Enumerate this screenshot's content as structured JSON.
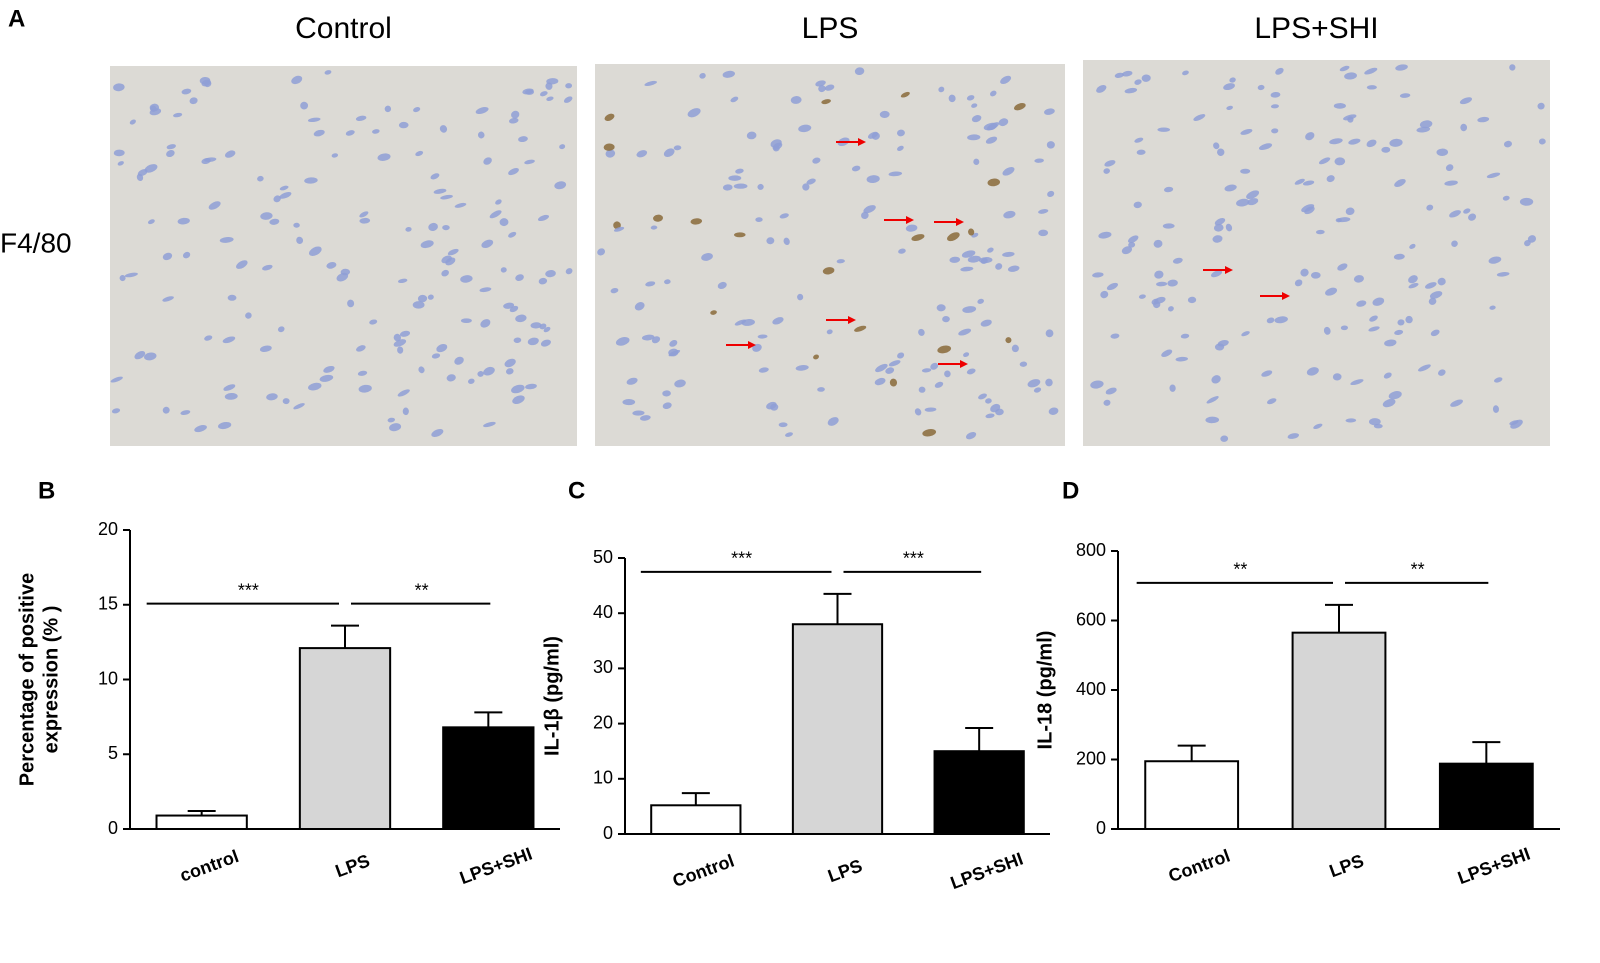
{
  "panel_a": {
    "label": "A",
    "columns": [
      "Control",
      "LPS",
      "LPS+SHI"
    ],
    "row_label": "F4/80"
  },
  "chart_data": [
    {
      "type": "bar",
      "panel": "B",
      "ylabel": [
        "Percentage of positive",
        "expression (% )"
      ],
      "categories": [
        "control",
        "LPS",
        "LPS+SHI"
      ],
      "values": [
        0.9,
        12.1,
        6.8
      ],
      "errors": [
        0.3,
        1.5,
        1.0
      ],
      "colors": [
        "#ffffff",
        "#d6d6d6",
        "#000000"
      ],
      "annotations": [
        "***",
        "**"
      ],
      "ylim": [
        0,
        20
      ],
      "yticks": [
        0,
        5,
        10,
        15,
        20
      ]
    },
    {
      "type": "bar",
      "panel": "C",
      "ylabel": [
        "IL-1β (pg/ml)"
      ],
      "categories": [
        "Control",
        "LPS",
        "LPS+SHI"
      ],
      "values": [
        5.2,
        38,
        15
      ],
      "errors": [
        2.2,
        5.5,
        4.2
      ],
      "colors": [
        "#ffffff",
        "#d6d6d6",
        "#000000"
      ],
      "annotations": [
        "***",
        "***"
      ],
      "ylim": [
        0,
        50
      ],
      "yticks": [
        0,
        10,
        20,
        30,
        40,
        50
      ]
    },
    {
      "type": "bar",
      "panel": "D",
      "ylabel": [
        "IL-18 (pg/ml)"
      ],
      "categories": [
        "Control",
        "LPS",
        "LPS+SHI"
      ],
      "values": [
        195,
        565,
        188
      ],
      "errors": [
        45,
        80,
        62
      ],
      "colors": [
        "#ffffff",
        "#d6d6d6",
        "#000000"
      ],
      "annotations": [
        "**",
        "**"
      ],
      "ylim": [
        0,
        800
      ],
      "yticks": [
        0,
        200,
        400,
        600,
        800
      ]
    }
  ]
}
